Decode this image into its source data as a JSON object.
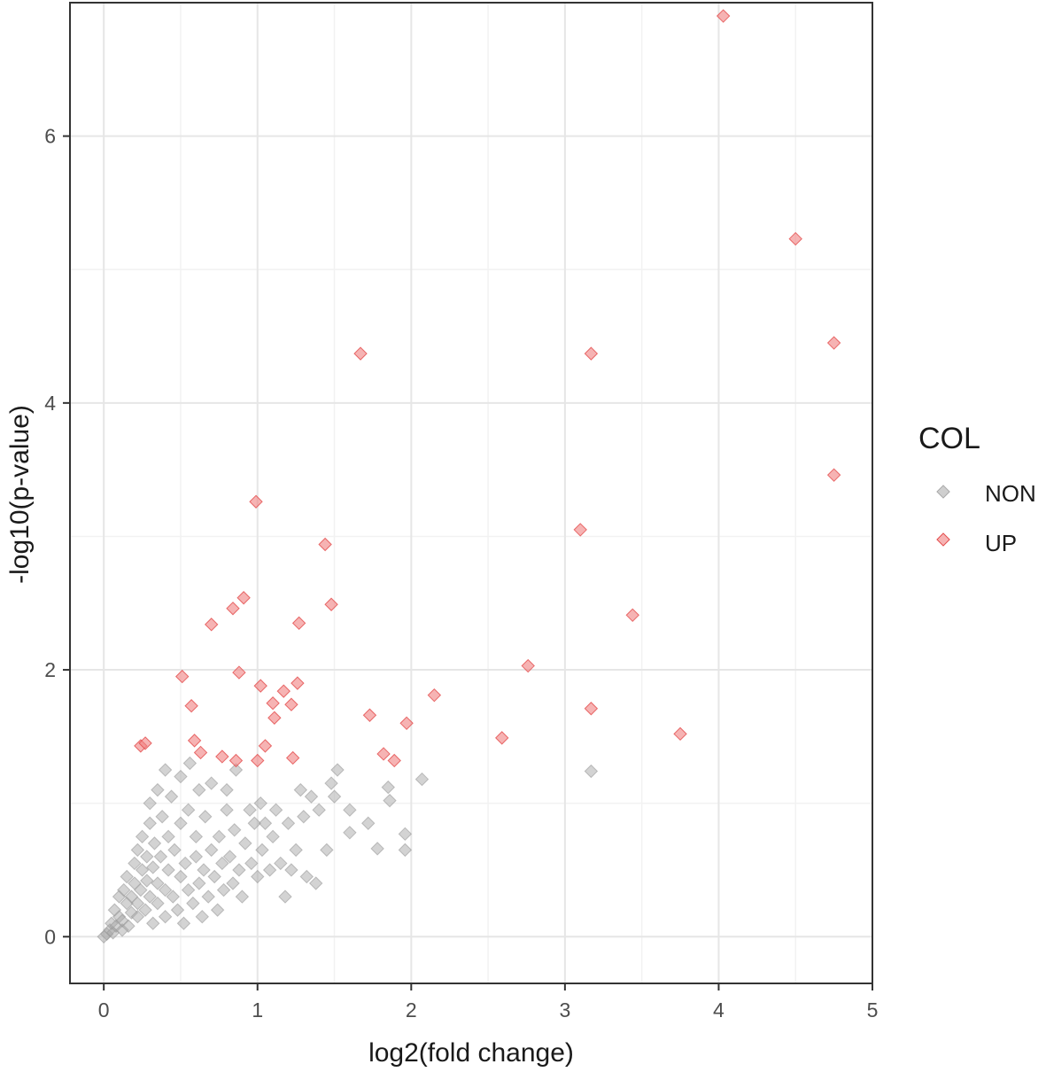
{
  "chart_data": {
    "type": "scatter",
    "title": "",
    "xlabel": "log2(fold change)",
    "ylabel": "-log10(p-value)",
    "xlim": [
      -0.22,
      5.0
    ],
    "ylim": [
      -0.35,
      7.0
    ],
    "x_ticks": [
      0,
      1,
      2,
      3,
      4,
      5
    ],
    "x_tick_labels": [
      "0",
      "1",
      "2",
      "3",
      "4",
      "5"
    ],
    "y_ticks": [
      0,
      2,
      4,
      6
    ],
    "y_tick_labels": [
      "0",
      "2",
      "4",
      "6"
    ],
    "grid": true,
    "legend": {
      "title": "COL",
      "placement": "right",
      "entries": [
        {
          "label": "NON",
          "color": "#a8a8a8"
        },
        {
          "label": "UP",
          "color": "#f08080"
        }
      ]
    },
    "series": [
      {
        "name": "NON",
        "color": "#a8a8a8",
        "points": [
          [
            0.0,
            0.0
          ],
          [
            0.02,
            0.02
          ],
          [
            0.04,
            0.05
          ],
          [
            0.06,
            0.03
          ],
          [
            0.05,
            0.1
          ],
          [
            0.08,
            0.08
          ],
          [
            0.1,
            0.15
          ],
          [
            0.12,
            0.05
          ],
          [
            0.07,
            0.2
          ],
          [
            0.1,
            0.3
          ],
          [
            0.12,
            0.12
          ],
          [
            0.15,
            0.25
          ],
          [
            0.13,
            0.35
          ],
          [
            0.15,
            0.45
          ],
          [
            0.16,
            0.08
          ],
          [
            0.18,
            0.18
          ],
          [
            0.18,
            0.3
          ],
          [
            0.2,
            0.4
          ],
          [
            0.2,
            0.55
          ],
          [
            0.22,
            0.15
          ],
          [
            0.22,
            0.25
          ],
          [
            0.22,
            0.65
          ],
          [
            0.24,
            0.35
          ],
          [
            0.25,
            0.5
          ],
          [
            0.25,
            0.75
          ],
          [
            0.27,
            0.2
          ],
          [
            0.28,
            0.42
          ],
          [
            0.28,
            0.6
          ],
          [
            0.3,
            0.3
          ],
          [
            0.3,
            0.85
          ],
          [
            0.3,
            1.0
          ],
          [
            0.32,
            0.1
          ],
          [
            0.32,
            0.52
          ],
          [
            0.33,
            0.7
          ],
          [
            0.35,
            0.25
          ],
          [
            0.35,
            0.4
          ],
          [
            0.35,
            1.1
          ],
          [
            0.37,
            0.6
          ],
          [
            0.38,
            0.9
          ],
          [
            0.4,
            0.15
          ],
          [
            0.4,
            0.35
          ],
          [
            0.4,
            1.25
          ],
          [
            0.42,
            0.5
          ],
          [
            0.42,
            0.75
          ],
          [
            0.44,
            1.05
          ],
          [
            0.45,
            0.3
          ],
          [
            0.46,
            0.65
          ],
          [
            0.48,
            0.2
          ],
          [
            0.5,
            0.45
          ],
          [
            0.5,
            0.85
          ],
          [
            0.5,
            1.2
          ],
          [
            0.52,
            0.1
          ],
          [
            0.53,
            0.55
          ],
          [
            0.55,
            0.35
          ],
          [
            0.55,
            0.95
          ],
          [
            0.56,
            1.3
          ],
          [
            0.58,
            0.25
          ],
          [
            0.6,
            0.6
          ],
          [
            0.6,
            0.75
          ],
          [
            0.62,
            0.4
          ],
          [
            0.62,
            1.1
          ],
          [
            0.64,
            0.15
          ],
          [
            0.65,
            0.5
          ],
          [
            0.66,
            0.9
          ],
          [
            0.68,
            0.3
          ],
          [
            0.7,
            0.65
          ],
          [
            0.7,
            1.15
          ],
          [
            0.72,
            0.45
          ],
          [
            0.74,
            0.2
          ],
          [
            0.75,
            0.75
          ],
          [
            0.77,
            0.55
          ],
          [
            0.78,
            0.35
          ],
          [
            0.8,
            0.95
          ],
          [
            0.8,
            1.1
          ],
          [
            0.82,
            0.6
          ],
          [
            0.84,
            0.4
          ],
          [
            0.85,
            0.8
          ],
          [
            0.86,
            1.25
          ],
          [
            0.88,
            0.5
          ],
          [
            0.9,
            0.3
          ],
          [
            0.92,
            0.7
          ],
          [
            0.95,
            0.95
          ],
          [
            0.96,
            0.55
          ],
          [
            0.98,
            0.85
          ],
          [
            1.0,
            0.45
          ],
          [
            1.02,
            1.0
          ],
          [
            1.03,
            0.65
          ],
          [
            1.05,
            0.85
          ],
          [
            1.08,
            0.5
          ],
          [
            1.1,
            0.75
          ],
          [
            1.12,
            0.95
          ],
          [
            1.15,
            0.55
          ],
          [
            1.18,
            0.3
          ],
          [
            1.2,
            0.85
          ],
          [
            1.22,
            0.5
          ],
          [
            1.25,
            0.65
          ],
          [
            1.28,
            1.1
          ],
          [
            1.3,
            0.9
          ],
          [
            1.32,
            0.45
          ],
          [
            1.35,
            1.05
          ],
          [
            1.38,
            0.4
          ],
          [
            1.4,
            0.95
          ],
          [
            1.45,
            0.65
          ],
          [
            1.48,
            1.15
          ],
          [
            1.5,
            1.05
          ],
          [
            1.52,
            1.25
          ],
          [
            1.6,
            0.95
          ],
          [
            1.6,
            0.78
          ],
          [
            1.72,
            0.85
          ],
          [
            1.78,
            0.66
          ],
          [
            1.85,
            1.12
          ],
          [
            1.86,
            1.02
          ],
          [
            1.96,
            0.77
          ],
          [
            1.96,
            0.65
          ],
          [
            2.07,
            1.18
          ],
          [
            3.17,
            1.24
          ]
        ]
      },
      {
        "name": "UP",
        "color": "#f08080",
        "points": [
          [
            0.24,
            1.43
          ],
          [
            0.27,
            1.45
          ],
          [
            0.51,
            1.95
          ],
          [
            0.57,
            1.73
          ],
          [
            0.59,
            1.47
          ],
          [
            0.63,
            1.38
          ],
          [
            0.7,
            2.34
          ],
          [
            0.77,
            1.35
          ],
          [
            0.84,
            2.46
          ],
          [
            0.86,
            1.32
          ],
          [
            0.88,
            1.98
          ],
          [
            0.91,
            2.54
          ],
          [
            0.99,
            3.26
          ],
          [
            1.0,
            1.32
          ],
          [
            1.02,
            1.88
          ],
          [
            1.05,
            1.43
          ],
          [
            1.1,
            1.75
          ],
          [
            1.11,
            1.64
          ],
          [
            1.17,
            1.84
          ],
          [
            1.22,
            1.74
          ],
          [
            1.23,
            1.34
          ],
          [
            1.26,
            1.9
          ],
          [
            1.27,
            2.35
          ],
          [
            1.44,
            2.94
          ],
          [
            1.48,
            2.49
          ],
          [
            1.67,
            4.37
          ],
          [
            1.73,
            1.66
          ],
          [
            1.82,
            1.37
          ],
          [
            1.89,
            1.32
          ],
          [
            1.97,
            1.6
          ],
          [
            2.15,
            1.81
          ],
          [
            2.59,
            1.49
          ],
          [
            2.76,
            2.03
          ],
          [
            3.1,
            3.05
          ],
          [
            3.17,
            4.37
          ],
          [
            3.17,
            1.71
          ],
          [
            3.44,
            2.41
          ],
          [
            3.75,
            1.52
          ],
          [
            4.03,
            6.9
          ],
          [
            4.5,
            5.23
          ],
          [
            4.75,
            4.45
          ],
          [
            4.75,
            3.46
          ]
        ]
      }
    ]
  }
}
